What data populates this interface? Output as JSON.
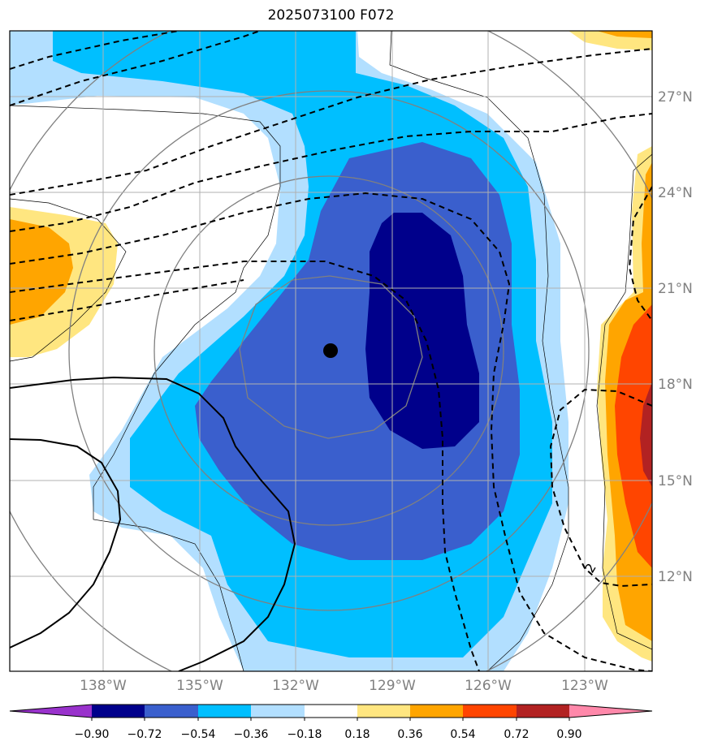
{
  "title": "2025073100 F072",
  "lat_labels": [
    "27°N",
    "24°N",
    "21°N",
    "18°N",
    "15°N",
    "12°N"
  ],
  "lon_labels": [
    "138°W",
    "135°W",
    "132°W",
    "129°W",
    "126°W",
    "123°W"
  ],
  "contour_label": "2",
  "colorbar": {
    "ticks": [
      "−0.90",
      "−0.72",
      "−0.54",
      "−0.36",
      "−0.18",
      "0.18",
      "0.36",
      "0.54",
      "0.72",
      "0.90"
    ],
    "colors": [
      "#9932cc",
      "#00008b",
      "#3a5fcd",
      "#00bfff",
      "#b2dfff",
      "#ffffff",
      "#ffe680",
      "#ffa500",
      "#ff4500",
      "#b22222",
      "#ff88aa"
    ]
  },
  "colors": {
    "deep_blue": "#00008b",
    "royal_blue": "#3a5fcd",
    "sky_blue": "#00bfff",
    "light_blue": "#b2dfff",
    "light_yellow": "#ffe680",
    "orange": "#ffa500",
    "red_orange": "#ff4500",
    "dark_red": "#b22222"
  }
}
